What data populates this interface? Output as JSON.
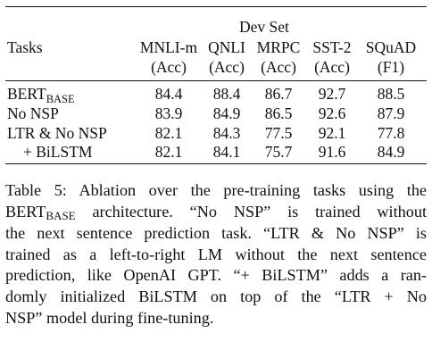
{
  "table": {
    "devset_label": "Dev Set",
    "tasks_header": "Tasks",
    "columns": [
      {
        "name": "MNLI-m",
        "metric": "(Acc)"
      },
      {
        "name": "QNLI",
        "metric": "(Acc)"
      },
      {
        "name": "MRPC",
        "metric": "(Acc)"
      },
      {
        "name": "SST-2",
        "metric": "(Acc)"
      },
      {
        "name": "SQuAD",
        "metric": "(F1)"
      }
    ],
    "rows": [
      {
        "task_main": "BERT",
        "task_sub": "BASE",
        "values": [
          "84.4",
          "88.4",
          "86.7",
          "92.7",
          "88.5"
        ]
      },
      {
        "task_main": "No NSP",
        "task_sub": "",
        "values": [
          "83.9",
          "84.9",
          "86.5",
          "92.6",
          "87.9"
        ]
      },
      {
        "task_main": "LTR & No NSP",
        "task_sub": "",
        "values": [
          "82.1",
          "84.3",
          "77.5",
          "92.1",
          "77.8"
        ]
      },
      {
        "task_main": "+ BiLSTM",
        "task_sub": "",
        "values": [
          "82.1",
          "84.1",
          "75.7",
          "91.6",
          "84.9"
        ]
      }
    ]
  },
  "caption": {
    "line1": "Table 5: Ablation over the pre-training tasks using the",
    "line2_pre": "BERT",
    "line2_sub": "BASE",
    "line2_post": " architecture. “No NSP” is trained without",
    "line3": "the next sentence prediction task. “LTR & No NSP” is",
    "line4": "trained as a left-to-right LM without the next sentence",
    "line5": "prediction, like OpenAI GPT. “+ BiLSTM” adds a ran-",
    "line6": "domly initialized BiLSTM on top of the “LTR + No",
    "line7": "NSP” model during fine-tuning."
  }
}
